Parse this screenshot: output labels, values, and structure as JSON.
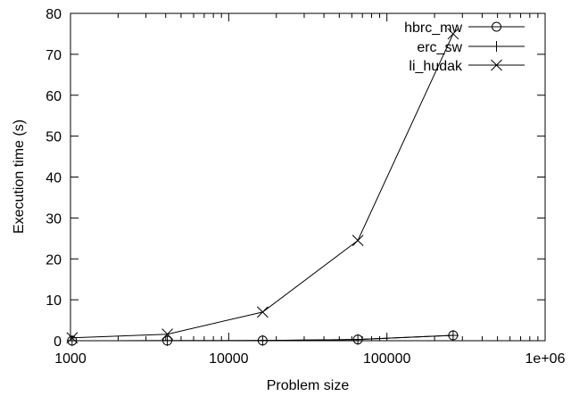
{
  "chart_data": {
    "type": "line",
    "xlabel": "Problem size",
    "ylabel": "Execution time (s)",
    "xscale": "log",
    "xlim": [
      1000,
      1000000
    ],
    "ylim": [
      0,
      80
    ],
    "xticks": [
      {
        "value": 1000,
        "label": "1000"
      },
      {
        "value": 10000,
        "label": "10000"
      },
      {
        "value": 100000,
        "label": "100000"
      },
      {
        "value": 1000000,
        "label": "1e+06"
      }
    ],
    "yticks": [
      {
        "value": 0,
        "label": "0"
      },
      {
        "value": 10,
        "label": "10"
      },
      {
        "value": 20,
        "label": "20"
      },
      {
        "value": 30,
        "label": "30"
      },
      {
        "value": 40,
        "label": "40"
      },
      {
        "value": 50,
        "label": "50"
      },
      {
        "value": 60,
        "label": "60"
      },
      {
        "value": 70,
        "label": "70"
      },
      {
        "value": 80,
        "label": "80"
      }
    ],
    "legend_position": "top-right",
    "grid": false,
    "series": [
      {
        "name": "hbrc_mw",
        "marker": "circle",
        "x": [
          1024,
          4096,
          16384,
          65536,
          262144
        ],
        "y": [
          0.01,
          0.02,
          0.05,
          0.3,
          1.3
        ]
      },
      {
        "name": "erc_sw",
        "marker": "plus",
        "x": [
          1024,
          4096,
          16384,
          65536,
          262144
        ],
        "y": [
          0.01,
          0.02,
          0.05,
          0.3,
          1.3
        ]
      },
      {
        "name": "li_hudak",
        "marker": "cross",
        "x": [
          1024,
          4096,
          16384,
          65536,
          262144
        ],
        "y": [
          0.7,
          1.6,
          7.0,
          24.5,
          75.0
        ]
      }
    ]
  }
}
